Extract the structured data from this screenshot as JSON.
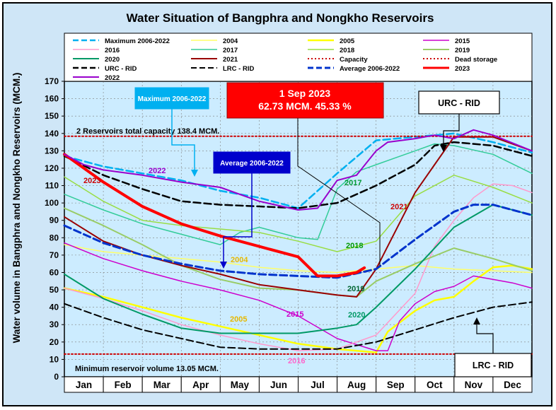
{
  "chart_data": {
    "type": "line",
    "title": "Water Situation of Bangphra and Nongkho Reservoirs",
    "ylabel": "Water volume in Bangphra and Nongkho Reservoirs (MCM.)",
    "xlabel": "",
    "ylim": [
      0,
      170
    ],
    "yticks": [
      0,
      10,
      20,
      30,
      40,
      50,
      60,
      70,
      80,
      90,
      100,
      110,
      120,
      130,
      140,
      150,
      160,
      170
    ],
    "xlim": [
      0,
      12
    ],
    "categories": [
      "Jan",
      "Feb",
      "Mar",
      "Apr",
      "May",
      "Jun",
      "Jul",
      "Aug",
      "Sep",
      "Oct",
      "Nov",
      "Dec"
    ],
    "grid": true,
    "legend_position": "top",
    "series": [
      {
        "name": "Maximum 2006-2022",
        "color": "#00b0f0",
        "style": "dashed",
        "width": 2.5,
        "label": "",
        "x": [
          0,
          1,
          2,
          3,
          4,
          5,
          6,
          7,
          8,
          9,
          10,
          11,
          12
        ],
        "y": [
          127,
          121,
          117,
          113,
          107,
          103,
          97,
          117,
          136,
          138,
          140,
          135,
          129
        ]
      },
      {
        "name": "2004",
        "color": "#ffff66",
        "style": "solid",
        "width": 1.5,
        "label": "2004",
        "x": [
          0,
          1,
          2,
          3,
          4,
          5,
          6,
          7,
          8,
          9,
          10,
          11,
          12
        ],
        "y": [
          76,
          72,
          70,
          68,
          66,
          63,
          61,
          60,
          62,
          64,
          62,
          61,
          60
        ]
      },
      {
        "name": "2005",
        "color": "#ffff00",
        "style": "solid",
        "width": 2.5,
        "label": "2005",
        "x": [
          0,
          1,
          2,
          3,
          4,
          5,
          6,
          7,
          8,
          8.3,
          9,
          9.5,
          10,
          10.5,
          11,
          11.5,
          12
        ],
        "y": [
          51,
          46,
          40,
          34,
          29,
          24,
          19,
          16,
          14,
          26,
          38,
          44,
          46,
          55,
          63,
          64,
          62
        ]
      },
      {
        "name": "2015",
        "color": "#cc00cc",
        "style": "solid",
        "width": 1.5,
        "label": "2015",
        "x": [
          0,
          1,
          2,
          3,
          4,
          5,
          6,
          7,
          8,
          8.3,
          8.6,
          9,
          9.5,
          10,
          10.5,
          11,
          11.5,
          12
        ],
        "y": [
          77,
          68,
          61,
          55,
          50,
          44,
          35,
          22,
          15,
          15,
          32,
          42,
          49,
          52,
          58,
          56,
          54,
          51
        ]
      },
      {
        "name": "2016",
        "color": "#ff99cc",
        "style": "solid",
        "width": 1.5,
        "label": "2016",
        "x": [
          0,
          1,
          2,
          3,
          4,
          5,
          6,
          7,
          8,
          9,
          9.5,
          10,
          10.5,
          11,
          11.5,
          12
        ],
        "y": [
          51,
          45,
          38,
          30,
          24,
          19,
          15,
          16,
          24,
          48,
          75,
          90,
          103,
          111,
          110,
          106
        ]
      },
      {
        "name": "2017",
        "color": "#33cc99",
        "style": "solid",
        "width": 1.5,
        "label": "2017",
        "x": [
          0,
          1,
          2,
          3,
          4,
          4.5,
          5,
          6,
          6.5,
          7,
          7.5,
          8,
          8.5,
          9,
          9.5,
          10,
          11,
          12
        ],
        "y": [
          105,
          96,
          88,
          82,
          76,
          83,
          86,
          80,
          79,
          108,
          118,
          122,
          126,
          130,
          134,
          133,
          128,
          117
        ]
      },
      {
        "name": "2018",
        "color": "#99dd44",
        "style": "solid",
        "width": 1.5,
        "label": "2018",
        "x": [
          0,
          1,
          2,
          3,
          4,
          5,
          6,
          7,
          8,
          9,
          10,
          11,
          12
        ],
        "y": [
          115,
          101,
          90,
          87,
          85,
          83,
          78,
          72,
          78,
          104,
          116,
          109,
          100
        ]
      },
      {
        "name": "2019",
        "color": "#99cc66",
        "style": "solid",
        "width": 2,
        "label": "2019",
        "x": [
          0,
          1,
          2,
          3,
          4,
          5,
          6,
          7,
          7.5,
          8,
          9,
          10,
          11,
          12
        ],
        "y": [
          97,
          87,
          76,
          64,
          56,
          51,
          50,
          47,
          46,
          55,
          65,
          74,
          68,
          61
        ]
      },
      {
        "name": "2020",
        "color": "#009966",
        "style": "solid",
        "width": 2,
        "label": "2020",
        "x": [
          0,
          1,
          2,
          3,
          4,
          5,
          6,
          7,
          7.5,
          8,
          9,
          10,
          11,
          12
        ],
        "y": [
          59,
          45,
          36,
          28,
          25,
          25,
          25,
          28,
          30,
          40,
          62,
          86,
          99,
          93
        ]
      },
      {
        "name": "2021",
        "color": "#990000",
        "style": "solid",
        "width": 2,
        "label": "2021",
        "x": [
          0,
          1,
          2,
          3,
          4,
          5,
          6,
          7,
          7.5,
          8,
          9,
          9.5,
          10,
          11,
          12
        ],
        "y": [
          92,
          78,
          70,
          64,
          59,
          53,
          50,
          47,
          46,
          62,
          106,
          122,
          138,
          138,
          130
        ]
      },
      {
        "name": "Capacity",
        "color": "#cc0000",
        "style": "dotted",
        "width": 2,
        "label": "",
        "x": [
          0,
          12
        ],
        "y": [
          138.4,
          138.4
        ]
      },
      {
        "name": "Dead storage",
        "color": "#cc0000",
        "style": "dotted",
        "width": 2,
        "label": "",
        "x": [
          0,
          12
        ],
        "y": [
          13.05,
          13.05
        ]
      },
      {
        "name": "URC - RID",
        "color": "#000000",
        "style": "dashed",
        "width": 2.5,
        "label": "",
        "x": [
          0,
          1,
          2,
          3,
          4,
          5,
          6,
          7,
          8,
          9,
          9.5,
          10,
          11,
          12
        ],
        "y": [
          127,
          116,
          108,
          101,
          99,
          98,
          97,
          100,
          110,
          122,
          133,
          135,
          133,
          127
        ]
      },
      {
        "name": "LRC - RID",
        "color": "#000000",
        "style": "dashed",
        "width": 2,
        "label": "",
        "x": [
          0,
          1,
          2,
          3,
          4,
          5,
          6,
          7,
          8,
          9,
          10,
          11,
          12
        ],
        "y": [
          42,
          34,
          27,
          22,
          17,
          16,
          16,
          16,
          20,
          27,
          34,
          40,
          43
        ]
      },
      {
        "name": "Average 2006-2022",
        "color": "#0033cc",
        "style": "dashed",
        "width": 3,
        "label": "",
        "x": [
          0,
          1,
          2,
          3,
          4,
          5,
          6,
          7,
          8,
          9,
          10,
          10.5,
          11,
          12
        ],
        "y": [
          87,
          77,
          70,
          65,
          61,
          59,
          58,
          57,
          62,
          79,
          95,
          99,
          99,
          93
        ]
      },
      {
        "name": "2023",
        "color": "#ff0000",
        "style": "solid",
        "width": 4,
        "label": "2023",
        "x": [
          0,
          0.5,
          1,
          2,
          3,
          4,
          5,
          6,
          6.5,
          7,
          7.5,
          7.7
        ],
        "y": [
          128,
          120,
          112,
          98,
          88,
          81,
          75,
          69,
          58,
          58,
          60,
          62.73
        ]
      },
      {
        "name": "2022",
        "color": "#9900cc",
        "style": "solid",
        "width": 2,
        "label": "2022",
        "x": [
          0,
          0.5,
          1,
          2,
          3,
          4,
          5,
          6,
          6.5,
          7,
          7.5,
          8,
          8.3,
          9,
          9.5,
          10,
          10.5,
          11,
          12
        ],
        "y": [
          128,
          122,
          119,
          116,
          112,
          109,
          101,
          96,
          97,
          113,
          116,
          130,
          135,
          137,
          139,
          137,
          142,
          139,
          130
        ]
      }
    ],
    "reference_lines": [
      {
        "label": "2 Reservoirs total capacity 138.4 MCM.",
        "y": 138.4
      },
      {
        "label": "Minimum reservoir volume 13.05 MCM.",
        "y": 13.05
      }
    ],
    "annotations": [
      {
        "label": "Maximum 2006-2022",
        "box_color": "#00b0f0",
        "text_color": "#ffffff",
        "points_to_month": 3.35,
        "points_to_value": 113
      },
      {
        "label": "Average 2006-2022",
        "box_color": "#0000cc",
        "text_color": "#ffffff",
        "points_to_month": 4.1,
        "points_to_value": 60
      },
      {
        "label": "URC - RID",
        "box_color": "#ffffff",
        "text_color": "#000000",
        "points_to_month": 9.7,
        "points_to_value": 130
      },
      {
        "label": "LRC - RID",
        "box_color": "#ffffff",
        "text_color": "#000000",
        "points_to_month": 10.3,
        "points_to_value": 34
      },
      {
        "label": "1 Sep 2023",
        "label2": "62.73 MCM. 45.33 %",
        "box_color": "#ff0000",
        "text_color": "#ffffff",
        "points_to_month": 7.7,
        "points_to_value": 62.73
      }
    ]
  }
}
